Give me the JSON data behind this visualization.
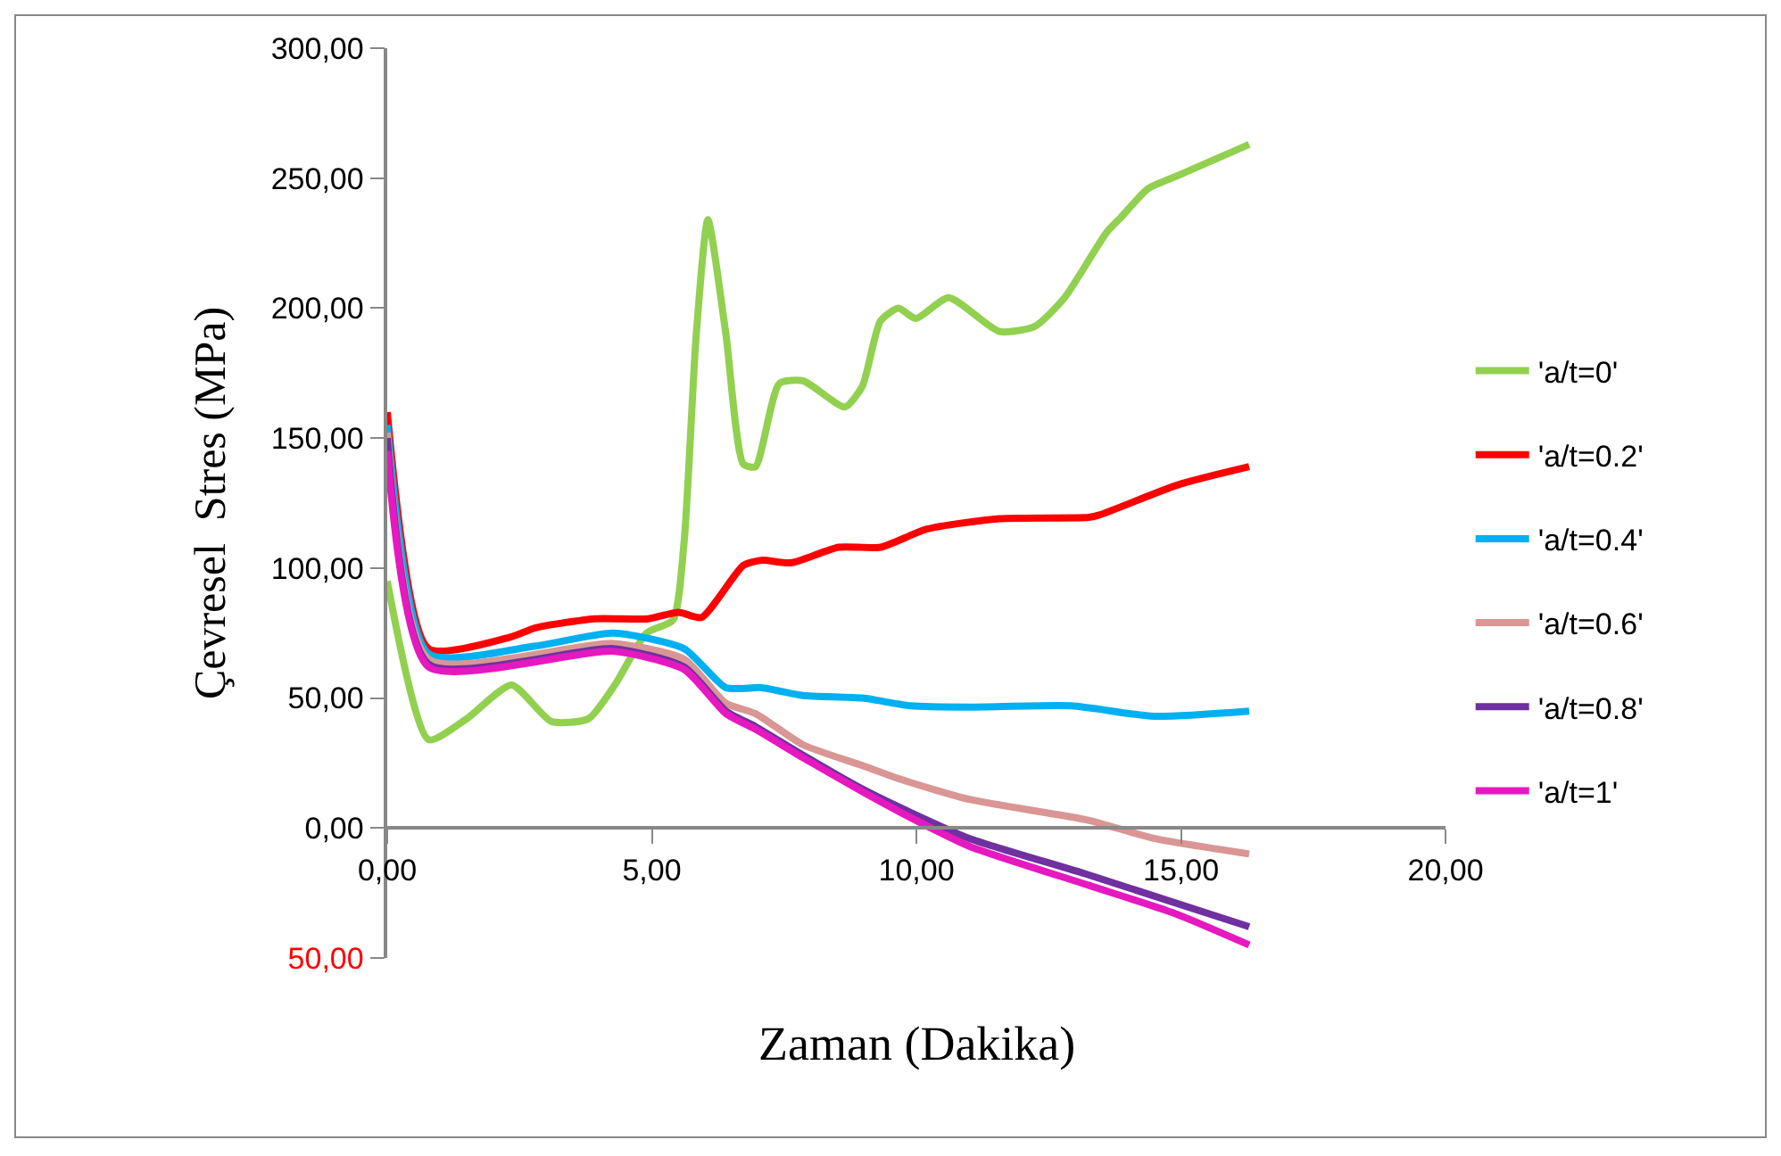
{
  "chart_data": {
    "type": "line",
    "xlabel": "Zaman (Dakika)",
    "ylabel": "Çevresel  Stres (MPa)",
    "xlim": [
      0,
      20
    ],
    "xticks": [
      {
        "value": 0,
        "label": "0,00"
      },
      {
        "value": 5,
        "label": "5,00"
      },
      {
        "value": 10,
        "label": "10,00"
      },
      {
        "value": 15,
        "label": "15,00"
      },
      {
        "value": 20,
        "label": "20,00"
      }
    ],
    "ylim": [
      -50,
      300
    ],
    "yticks": [
      {
        "value": -50,
        "label": "50,00"
      },
      {
        "value": 0,
        "label": "0,00"
      },
      {
        "value": 50,
        "label": "50,00"
      },
      {
        "value": 100,
        "label": "100,00"
      },
      {
        "value": 150,
        "label": "150,00"
      },
      {
        "value": 200,
        "label": "200,00"
      },
      {
        "value": 250,
        "label": "250,00"
      },
      {
        "value": 300,
        "label": "300,00"
      }
    ],
    "grid": false,
    "legend": "right",
    "marker": "none",
    "line_style": "solid",
    "series": [
      {
        "name": "'a/t=0'",
        "color": "#92d050",
        "x": [
          0,
          0.78,
          1.5,
          2.35,
          3.1,
          3.8,
          4.3,
          4.9,
          5.4,
          5.61,
          5.84,
          6.06,
          6.4,
          6.73,
          6.96,
          7.41,
          7.86,
          8.65,
          8.98,
          9.32,
          9.66,
          9.99,
          10.61,
          11.57,
          12.24,
          12.8,
          13.59,
          13.87,
          14.38,
          14.94,
          16.29
        ],
        "values": [
          95,
          34,
          42,
          55,
          41,
          42,
          55,
          75,
          80,
          110,
          190,
          234,
          190,
          140,
          139,
          171,
          172,
          162,
          170,
          195,
          200,
          196,
          204,
          191,
          193,
          204,
          229,
          235,
          246,
          251,
          263
        ]
      },
      {
        "name": "'a/t=0.2'",
        "color": "#ff0000",
        "x": [
          0,
          0.78,
          2.35,
          2.8,
          3.92,
          4.93,
          5.5,
          5.94,
          6.73,
          7.07,
          7.63,
          8.53,
          9.32,
          10.2,
          11.57,
          13.25,
          13.47,
          14.94,
          16.29
        ],
        "values": [
          160,
          69,
          73.6,
          77,
          80.5,
          80.5,
          83,
          81,
          101,
          103,
          102,
          108,
          108,
          115,
          119,
          119.5,
          120.5,
          132,
          139
        ]
      },
      {
        "name": "'a/t=0.4'",
        "color": "#00b0f0",
        "x": [
          0,
          0.78,
          2.8,
          4.27,
          5.61,
          6.4,
          7.07,
          7.86,
          8.98,
          9.89,
          11,
          12.92,
          14.49,
          16.29
        ],
        "values": [
          155,
          67,
          70,
          75,
          69,
          54,
          54,
          51,
          50,
          47,
          46.5,
          47,
          43,
          45
        ]
      },
      {
        "name": "'a/t=0.6'",
        "color": "#d99694",
        "x": [
          0,
          0.78,
          4.27,
          5.61,
          6.4,
          6.96,
          7.86,
          8.98,
          9.66,
          11,
          13.25,
          14.49,
          16.29
        ],
        "values": [
          152,
          65,
          71,
          65,
          48,
          44,
          32,
          24,
          19,
          11,
          3,
          -4,
          -10
        ]
      },
      {
        "name": "'a/t=0.8'",
        "color": "#7030a0",
        "x": [
          0,
          0.78,
          4.27,
          5.61,
          6.4,
          6.96,
          7.86,
          8.98,
          9.89,
          11,
          13.25,
          16.29
        ],
        "values": [
          150,
          63,
          69,
          62,
          45,
          39,
          28,
          15,
          6,
          -4,
          -18,
          -38
        ]
      },
      {
        "name": "'a/t=1'",
        "color": "#e619c0",
        "x": [
          0,
          0.78,
          4.27,
          5.61,
          6.4,
          6.96,
          7.86,
          8.98,
          9.89,
          11,
          13.25,
          14.9,
          16.29
        ],
        "values": [
          145,
          62,
          68,
          61,
          44,
          38,
          27,
          14,
          4,
          -7,
          -22,
          -33,
          -45
        ]
      }
    ]
  }
}
